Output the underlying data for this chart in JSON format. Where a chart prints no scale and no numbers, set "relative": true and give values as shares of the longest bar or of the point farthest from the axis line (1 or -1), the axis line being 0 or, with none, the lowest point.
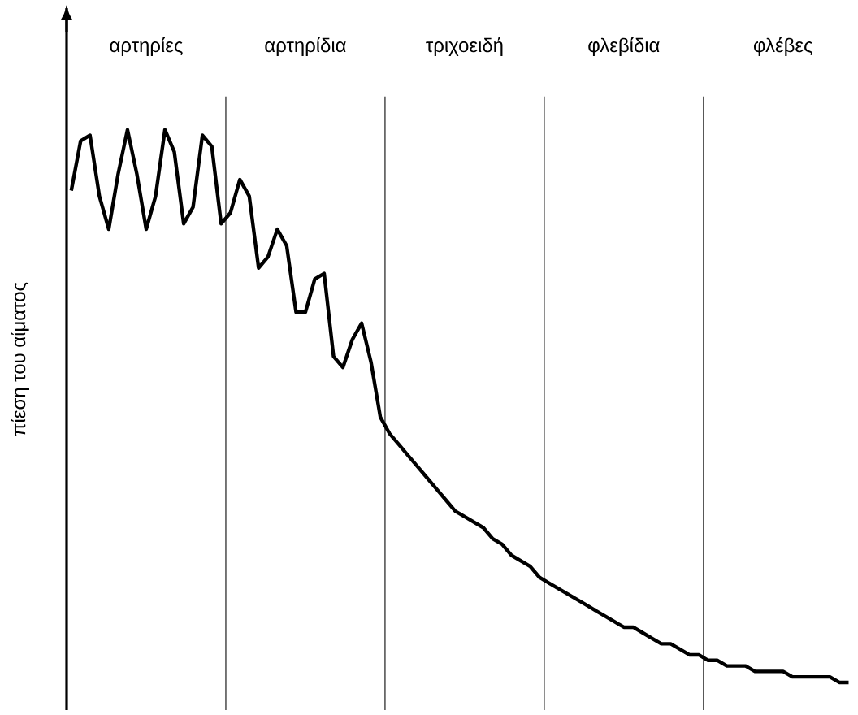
{
  "chart_data": {
    "type": "line",
    "relative": true,
    "ylabel": "πίεση του αίματος",
    "categories": [
      null,
      null,
      null,
      null,
      null,
      null,
      null,
      null,
      "αρτηρίες",
      null,
      null,
      null,
      null,
      null,
      null,
      null,
      null,
      null,
      null,
      null,
      null,
      null,
      null,
      null,
      null,
      "αρτηρίδια",
      null,
      null,
      null,
      null,
      null,
      null,
      null,
      null,
      null,
      null,
      null,
      null,
      null,
      null,
      null,
      null,
      "τριχοειδή",
      null,
      null,
      null,
      null,
      null,
      null,
      null,
      null,
      null,
      null,
      null,
      null,
      null,
      null,
      null,
      null,
      "φλεβίδια",
      null,
      null,
      null,
      null,
      null,
      null,
      null,
      null,
      null,
      null,
      null,
      null,
      null,
      null,
      null,
      null,
      "φλέβες",
      null,
      null,
      null,
      null,
      null,
      null,
      null,
      null
    ],
    "series": [
      {
        "color": "#000000",
        "values": [
          0.89,
          0.98,
          0.99,
          0.88,
          0.82,
          0.92,
          1.0,
          0.92,
          0.82,
          0.88,
          1.0,
          0.96,
          0.83,
          0.86,
          0.99,
          0.97,
          0.83,
          0.85,
          0.91,
          0.88,
          0.75,
          0.77,
          0.82,
          0.79,
          0.67,
          0.67,
          0.73,
          0.74,
          0.59,
          0.57,
          0.62,
          0.65,
          0.58,
          0.48,
          0.45,
          0.43,
          0.41,
          0.39,
          0.37,
          0.35,
          0.33,
          0.31,
          0.3,
          0.29,
          0.28,
          0.26,
          0.25,
          0.23,
          0.22,
          0.21,
          0.19,
          0.18,
          0.17,
          0.16,
          0.15,
          0.14,
          0.13,
          0.12,
          0.11,
          0.1,
          0.1,
          0.09,
          0.08,
          0.07,
          0.07,
          0.06,
          0.05,
          0.05,
          0.04,
          0.04,
          0.03,
          0.03,
          0.03,
          0.02,
          0.02,
          0.02,
          0.02,
          0.01,
          0.01,
          0.01,
          0.01,
          0.01,
          0.0,
          0.0,
          null
        ]
      }
    ]
  }
}
